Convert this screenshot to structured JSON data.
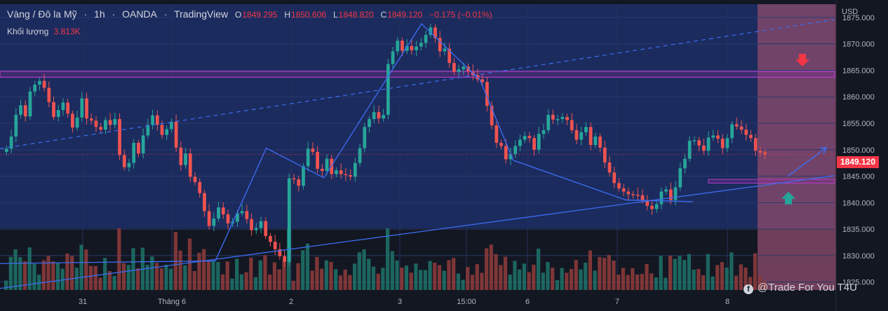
{
  "header": {
    "symbol": "Vàng / Đô la Mỹ",
    "interval": "1h",
    "broker": "OANDA",
    "platform": "TradingView",
    "open_label": "O",
    "open": "1849.295",
    "high_label": "H",
    "high": "1850.606",
    "low_label": "L",
    "low": "1848.820",
    "close_label": "C",
    "close": "1849.120",
    "change": "−0.175 (−0.01%)"
  },
  "volume": {
    "label": "Khối lượng",
    "value": "3.813K"
  },
  "price_axis": {
    "unit": "USD",
    "ticks": [
      "1875.000",
      "1870.000",
      "1865.000",
      "1860.000",
      "1855.000",
      "1850.000",
      "1845.000",
      "1840.000",
      "1835.000",
      "1830.000",
      "1825.000"
    ],
    "current_price": "1849.120"
  },
  "time_axis": {
    "labels": [
      "31",
      "Tháng 6",
      "2",
      "3",
      "15:00",
      "6",
      "7",
      "8"
    ]
  },
  "watermark": {
    "text": "@Trade For You T4U",
    "icon": "facebook-icon"
  },
  "colors": {
    "bg_main": "#1c2b5e",
    "bg_right": "#131722",
    "up": "#26a69a",
    "down": "#ef5350",
    "zone": "#8f4c6d",
    "resistance": "#b33fc7",
    "line": "#3b6cf0"
  },
  "chart_data": {
    "type": "candlestick",
    "y_range": [
      1823.5,
      1877.5
    ],
    "current_price": 1849.12,
    "resistance_zone": [
      1863.7,
      1864.8
    ],
    "support_zone": [
      1843.7,
      1844.4
    ],
    "trendline_support": [
      [
        0.0,
        1823.8
      ],
      [
        1.0,
        1845.1
      ]
    ],
    "trendline_dashed": [
      [
        0.0,
        1850.2
      ],
      [
        1.0,
        1874.6
      ]
    ],
    "zigzag": [
      [
        0.0,
        1828.5
      ],
      [
        0.258,
        1829.0
      ],
      [
        0.319,
        1850.3
      ],
      [
        0.388,
        1844.7
      ],
      [
        0.505,
        1873.8
      ],
      [
        0.575,
        1863.2
      ],
      [
        0.615,
        1848.0
      ],
      [
        0.75,
        1840.5
      ],
      [
        0.83,
        1840.2
      ]
    ],
    "forecast_arrow": [
      [
        0.944,
        1845.0
      ],
      [
        0.99,
        1850.4
      ]
    ],
    "signals": [
      {
        "dir": "down",
        "price": 1866.8
      },
      {
        "dir": "up",
        "price": 1841.0
      }
    ],
    "candles_close": [
      1850.2,
      1852.5,
      1856.6,
      1858.4,
      1856.3,
      1861.0,
      1862.3,
      1863.0,
      1861.7,
      1859.0,
      1856.2,
      1857.5,
      1858.9,
      1856.8,
      1854.2,
      1856.1,
      1859.7,
      1855.9,
      1855.5,
      1854.3,
      1853.8,
      1855.6,
      1854.7,
      1855.8,
      1849.0,
      1846.7,
      1847.5,
      1851.3,
      1849.3,
      1852.7,
      1854.7,
      1856.5,
      1854.7,
      1852.8,
      1853.9,
      1855.3,
      1850.4,
      1847.1,
      1849.3,
      1844.9,
      1843.9,
      1841.8,
      1838.4,
      1835.6,
      1837.0,
      1839.1,
      1837.8,
      1836.1,
      1836.4,
      1838.0,
      1838.4,
      1836.9,
      1834.8,
      1835.2,
      1836.5,
      1833.7,
      1832.6,
      1831.2,
      1829.9,
      1828.8,
      1844.6,
      1844.4,
      1843.2,
      1846.9,
      1850.2,
      1849.6,
      1846.4,
      1846.0,
      1848.3,
      1845.4,
      1846.1,
      1845.4,
      1845.2,
      1844.9,
      1847.5,
      1850.3,
      1854.3,
      1855.8,
      1857.1,
      1855.9,
      1856.6,
      1866.2,
      1868.6,
      1870.6,
      1868.7,
      1869.6,
      1868.8,
      1869.5,
      1870.2,
      1871.7,
      1873.1,
      1871.1,
      1868.6,
      1869.1,
      1866.4,
      1864.7,
      1865.2,
      1865.7,
      1864.8,
      1864.1,
      1863.3,
      1862.8,
      1858.3,
      1854.6,
      1851.3,
      1850.7,
      1848.2,
      1849.2,
      1850.7,
      1851.9,
      1852.6,
      1852.2,
      1850.0,
      1853.0,
      1853.7,
      1856.6,
      1855.7,
      1855.8,
      1856.2,
      1855.6,
      1853.7,
      1851.9,
      1853.3,
      1854.3,
      1850.9,
      1852.5,
      1850.4,
      1847.6,
      1845.7,
      1843.7,
      1842.7,
      1842.1,
      1841.6,
      1841.5,
      1841.4,
      1840.4,
      1839.4,
      1838.8,
      1839.7,
      1842.1,
      1842.5,
      1840.5,
      1842.9,
      1846.5,
      1848.3,
      1851.7,
      1851.8,
      1850.8,
      1849.8,
      1852.3,
      1852.7,
      1852.1,
      1850.3,
      1852.2,
      1854.8,
      1854.4,
      1853.8,
      1852.8,
      1852.2,
      1849.8,
      1849.5,
      1849.1
    ],
    "volume_units": "relative"
  }
}
